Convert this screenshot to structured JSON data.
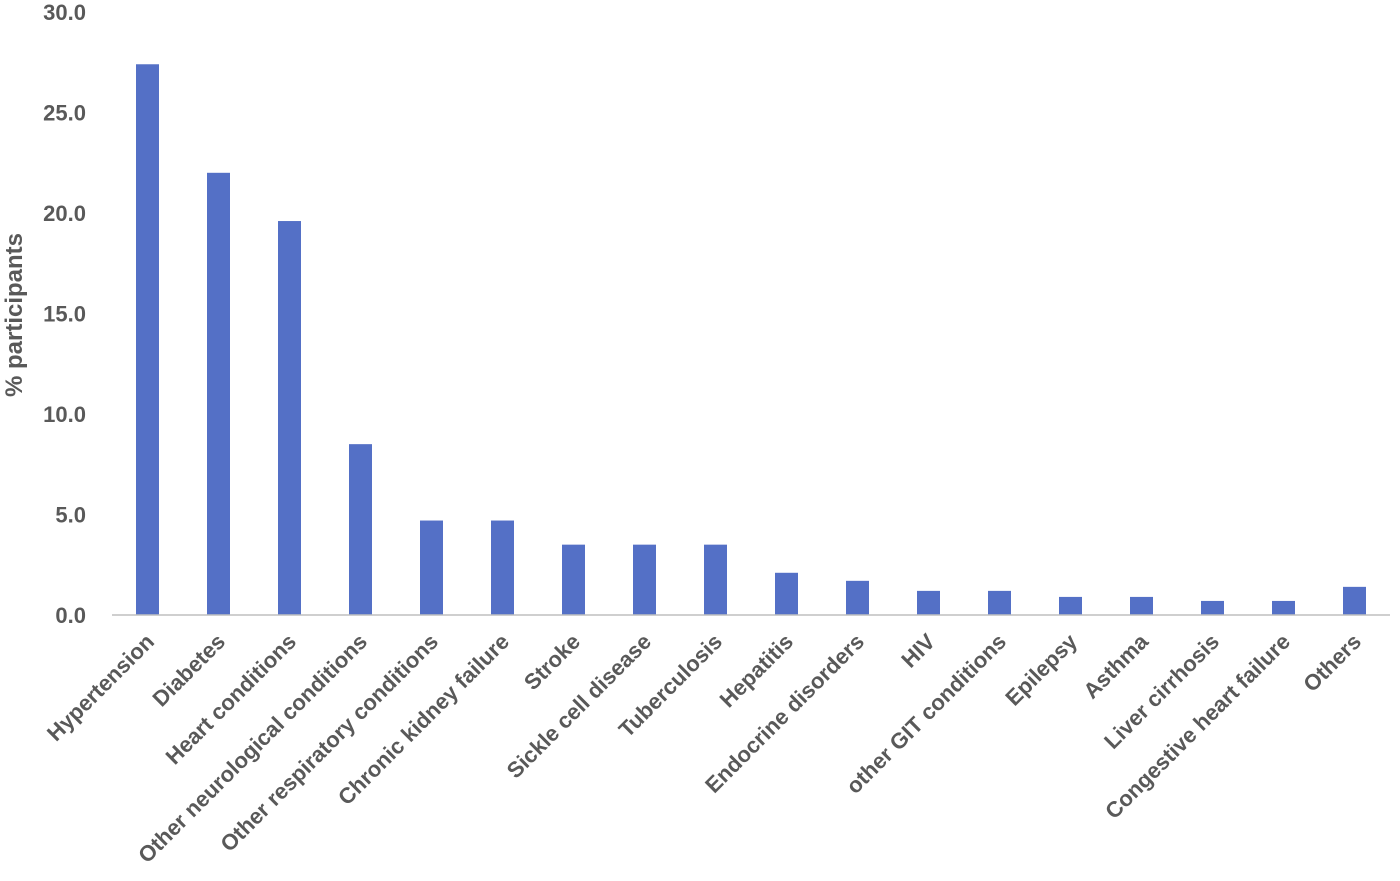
{
  "chart_data": {
    "type": "bar",
    "title": "",
    "xlabel": "",
    "ylabel": "% participants",
    "ylim": [
      0,
      30
    ],
    "yticks": [
      "0.0",
      "5.0",
      "10.0",
      "15.0",
      "20.0",
      "25.0",
      "30.0"
    ],
    "grid": false,
    "legend": "none",
    "bar_color": "#5470C6",
    "categories": [
      "Hypertension",
      "Diabetes",
      "Heart conditions",
      "Other neurological conditions",
      "Other respiratory conditions",
      "Chronic kidney failure",
      "Stroke",
      "Sickle cell disease",
      "Tuberculosis",
      "Hepatitis",
      "Endocrine disorders",
      "HIV",
      "other GIT conditions",
      "Epilepsy",
      "Asthma",
      "Liver cirrhosis",
      "Congestive heart failure",
      "Others"
    ],
    "values": [
      27.4,
      22.0,
      19.6,
      8.5,
      4.7,
      4.7,
      3.5,
      3.5,
      3.5,
      2.1,
      1.7,
      1.2,
      1.2,
      0.9,
      0.9,
      0.7,
      0.7,
      1.4
    ]
  }
}
